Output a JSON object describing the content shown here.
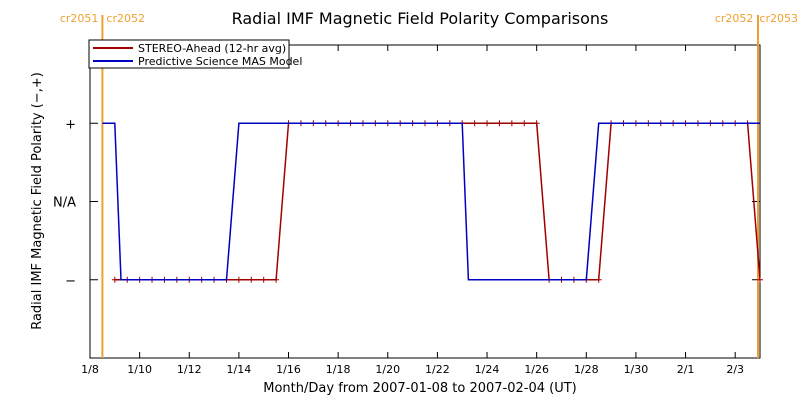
{
  "chart_data": {
    "type": "line",
    "title": "Radial IMF Magnetic Field Polarity Comparisons",
    "xlabel": "Month/Day from 2007-01-08 to 2007-02-04 (UT)",
    "ylabel": "Radial IMF Magnetic Field Polarity (−,+)",
    "xlim": [
      "2007-01-08",
      "2007-02-04"
    ],
    "ylim": [
      -2,
      2
    ],
    "x_ticks": [
      {
        "date": "2007-01-08",
        "label": "1/8"
      },
      {
        "date": "2007-01-10",
        "label": "1/10"
      },
      {
        "date": "2007-01-12",
        "label": "1/12"
      },
      {
        "date": "2007-01-14",
        "label": "1/14"
      },
      {
        "date": "2007-01-16",
        "label": "1/16"
      },
      {
        "date": "2007-01-18",
        "label": "1/18"
      },
      {
        "date": "2007-01-20",
        "label": "1/20"
      },
      {
        "date": "2007-01-22",
        "label": "1/22"
      },
      {
        "date": "2007-01-24",
        "label": "1/24"
      },
      {
        "date": "2007-01-26",
        "label": "1/26"
      },
      {
        "date": "2007-01-28",
        "label": "1/28"
      },
      {
        "date": "2007-01-30",
        "label": "1/30"
      },
      {
        "date": "2007-02-01",
        "label": "2/1"
      },
      {
        "date": "2007-02-03",
        "label": "2/3"
      }
    ],
    "y_ticks": [
      {
        "value": 1,
        "label": "+"
      },
      {
        "value": 0,
        "label": "N/A"
      },
      {
        "value": -1,
        "label": "−"
      }
    ],
    "legend": {
      "placement": "top-left"
    },
    "carrington_markers": [
      {
        "date": "2007-01-08 12:00",
        "left_label": "cr2051",
        "right_label": "cr2052",
        "color": "#f0a030"
      },
      {
        "date": "2007-02-04 00:00",
        "left_label": "cr2052",
        "right_label": "cr2053",
        "color": "#f0a030"
      }
    ],
    "series": [
      {
        "name": "STEREO-Ahead (12-hr avg)",
        "color": "#a00000",
        "markers": true,
        "points": [
          [
            "2007-01-09 00:00",
            -1
          ],
          [
            "2007-01-09 12:00",
            -1
          ],
          [
            "2007-01-10 00:00",
            -1
          ],
          [
            "2007-01-10 12:00",
            -1
          ],
          [
            "2007-01-11 00:00",
            -1
          ],
          [
            "2007-01-11 12:00",
            -1
          ],
          [
            "2007-01-12 00:00",
            -1
          ],
          [
            "2007-01-12 12:00",
            -1
          ],
          [
            "2007-01-13 00:00",
            -1
          ],
          [
            "2007-01-13 12:00",
            -1
          ],
          [
            "2007-01-14 00:00",
            -1
          ],
          [
            "2007-01-14 12:00",
            -1
          ],
          [
            "2007-01-15 00:00",
            -1
          ],
          [
            "2007-01-15 12:00",
            -1
          ],
          [
            "2007-01-16 00:00",
            1
          ],
          [
            "2007-01-16 12:00",
            1
          ],
          [
            "2007-01-17 00:00",
            1
          ],
          [
            "2007-01-17 12:00",
            1
          ],
          [
            "2007-01-18 00:00",
            1
          ],
          [
            "2007-01-18 12:00",
            1
          ],
          [
            "2007-01-19 00:00",
            1
          ],
          [
            "2007-01-19 12:00",
            1
          ],
          [
            "2007-01-20 00:00",
            1
          ],
          [
            "2007-01-20 12:00",
            1
          ],
          [
            "2007-01-21 00:00",
            1
          ],
          [
            "2007-01-21 12:00",
            1
          ],
          [
            "2007-01-22 00:00",
            1
          ],
          [
            "2007-01-22 12:00",
            1
          ],
          [
            "2007-01-23 00:00",
            1
          ],
          [
            "2007-01-23 12:00",
            1
          ],
          [
            "2007-01-24 00:00",
            1
          ],
          [
            "2007-01-24 12:00",
            1
          ],
          [
            "2007-01-25 00:00",
            1
          ],
          [
            "2007-01-25 12:00",
            1
          ],
          [
            "2007-01-26 00:00",
            1
          ],
          [
            "2007-01-26 12:00",
            -1
          ],
          [
            "2007-01-27 00:00",
            -1
          ],
          [
            "2007-01-27 12:00",
            -1
          ],
          [
            "2007-01-28 00:00",
            -1
          ],
          [
            "2007-01-28 12:00",
            -1
          ],
          [
            "2007-01-29 00:00",
            1
          ],
          [
            "2007-01-29 12:00",
            1
          ],
          [
            "2007-01-30 00:00",
            1
          ],
          [
            "2007-01-30 12:00",
            1
          ],
          [
            "2007-01-31 00:00",
            1
          ],
          [
            "2007-01-31 12:00",
            1
          ],
          [
            "2007-02-01 00:00",
            1
          ],
          [
            "2007-02-01 12:00",
            1
          ],
          [
            "2007-02-02 00:00",
            1
          ],
          [
            "2007-02-02 12:00",
            1
          ],
          [
            "2007-02-03 00:00",
            1
          ],
          [
            "2007-02-03 12:00",
            1
          ],
          [
            "2007-02-04 00:00",
            -1
          ],
          [
            "2007-02-04 12:00",
            -1
          ]
        ]
      },
      {
        "name": "Predictive Science MAS Model",
        "color": "#0000c0",
        "markers": false,
        "points": [
          [
            "2007-01-08 12:00",
            1
          ],
          [
            "2007-01-09 00:00",
            1
          ],
          [
            "2007-01-09 06:00",
            -1
          ],
          [
            "2007-01-13 12:00",
            -1
          ],
          [
            "2007-01-14 00:00",
            1
          ],
          [
            "2007-01-23 00:00",
            1
          ],
          [
            "2007-01-23 06:00",
            -1
          ],
          [
            "2007-01-28 00:00",
            -1
          ],
          [
            "2007-01-28 12:00",
            1
          ],
          [
            "2007-02-04 12:00",
            1
          ]
        ]
      }
    ]
  }
}
